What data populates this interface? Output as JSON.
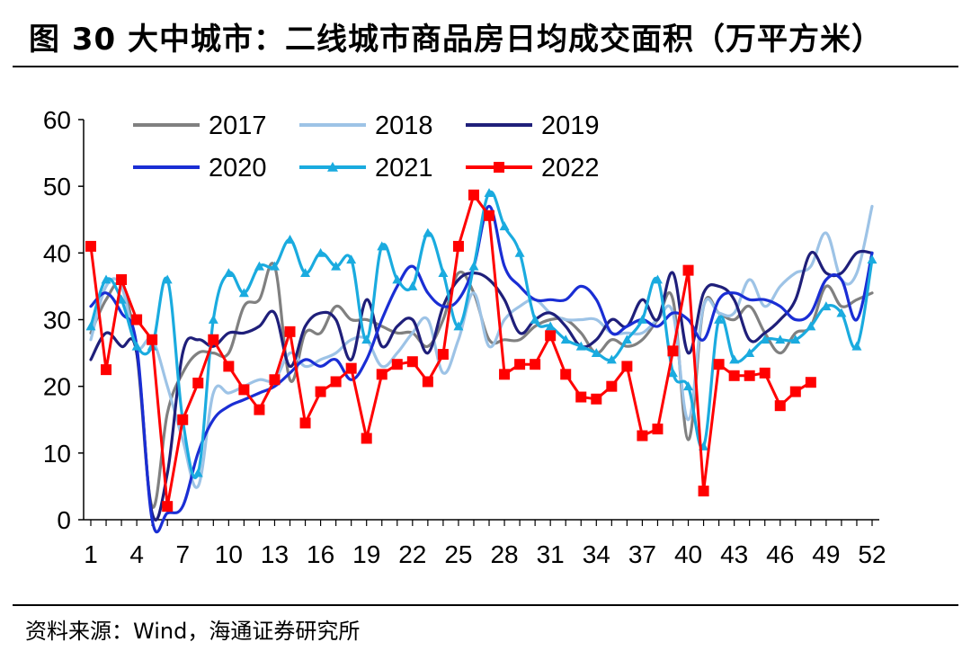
{
  "title": "图 30 大中城市：二线城市商品房日均成交面积（万平方米）",
  "source": "资料来源：Wind，海通证券研究所",
  "chart_data": {
    "type": "line",
    "title": "大中城市：二线城市商品房日均成交面积（万平方米）",
    "xlabel": "",
    "ylabel": "",
    "ylim": [
      0,
      60
    ],
    "yticks": [
      0,
      10,
      20,
      30,
      40,
      50,
      60
    ],
    "xlim": [
      1,
      52
    ],
    "xtick_labels": [
      "1",
      "4",
      "7",
      "10",
      "13",
      "16",
      "19",
      "22",
      "25",
      "28",
      "31",
      "34",
      "37",
      "40",
      "43",
      "46",
      "49",
      "52"
    ],
    "x": [
      1,
      2,
      3,
      4,
      5,
      6,
      7,
      8,
      9,
      10,
      11,
      12,
      13,
      14,
      15,
      16,
      17,
      18,
      19,
      20,
      21,
      22,
      23,
      24,
      25,
      26,
      27,
      28,
      29,
      30,
      31,
      32,
      33,
      34,
      35,
      36,
      37,
      38,
      39,
      40,
      41,
      42,
      43,
      44,
      45,
      46,
      47,
      48,
      49,
      50,
      51,
      52
    ],
    "series": [
      {
        "name": "2017",
        "color": "#808080",
        "marker": "none",
        "values": [
          28,
          33,
          35,
          25,
          2,
          16,
          22,
          25,
          25,
          25,
          32,
          33,
          38,
          21,
          28,
          28,
          32,
          30,
          30,
          29,
          28,
          28,
          26,
          30,
          37,
          34,
          27,
          27,
          27,
          29,
          30,
          30,
          28,
          25,
          27,
          26,
          27,
          30,
          33,
          12,
          32,
          31,
          30,
          32,
          28,
          25,
          28,
          29,
          35,
          32,
          33,
          34
        ]
      },
      {
        "name": "2018",
        "color": "#9DC3E6",
        "marker": "none",
        "values": [
          27,
          35,
          35,
          26,
          27,
          20,
          12,
          5,
          19,
          19,
          20,
          21,
          21,
          25,
          23,
          24,
          25,
          27,
          27,
          23,
          25,
          28,
          30,
          22,
          27,
          34,
          26,
          30,
          32,
          33,
          31,
          30,
          30,
          30,
          28,
          28,
          28,
          30,
          31,
          15,
          32,
          31,
          31,
          36,
          32,
          35,
          37,
          38,
          43,
          36,
          37,
          47
        ]
      },
      {
        "name": "2019",
        "color": "#1F1F7A",
        "marker": "none",
        "values": [
          24,
          28,
          26,
          25,
          1,
          7,
          25,
          27,
          26,
          28,
          28,
          29,
          31,
          23,
          29,
          31,
          30,
          24,
          33,
          26,
          29,
          30,
          25,
          32,
          36,
          37,
          36,
          33,
          28,
          30,
          31,
          29,
          26,
          27,
          30,
          29,
          33,
          30,
          37,
          25,
          34,
          35,
          33,
          27,
          28,
          30,
          33,
          40,
          37,
          37,
          40,
          40
        ]
      },
      {
        "name": "2020",
        "color": "#1A2ED4",
        "marker": "none",
        "values": [
          32,
          34,
          31,
          26,
          0,
          1,
          2,
          10,
          15,
          17,
          18,
          19,
          20,
          22,
          24,
          23,
          24,
          21,
          24,
          30,
          35,
          38,
          34,
          32,
          33,
          38,
          47,
          38,
          35,
          33,
          33,
          33,
          35,
          33,
          28,
          29,
          30,
          29,
          31,
          30,
          27,
          33,
          34,
          33,
          33,
          32,
          30,
          31,
          36,
          36,
          30,
          40
        ]
      },
      {
        "name": "2021",
        "color": "#1AABDF",
        "marker": "triangle",
        "values": [
          29,
          36,
          33,
          26,
          26,
          36,
          15,
          7,
          30,
          37,
          34,
          38,
          38,
          42,
          37,
          40,
          38,
          39,
          27,
          41,
          36,
          35,
          43,
          37,
          29,
          38,
          49,
          44,
          40,
          30,
          29,
          27,
          26,
          25,
          24,
          27,
          30,
          36,
          22,
          20,
          11,
          30,
          24,
          25,
          27,
          27,
          27,
          29,
          32,
          31,
          26,
          39
        ]
      },
      {
        "name": "2022",
        "color": "#FF0000",
        "marker": "square",
        "values": [
          41,
          22.5,
          36,
          30,
          27,
          2,
          15,
          20.5,
          27,
          23,
          19.5,
          16.5,
          21,
          28.2,
          14.5,
          19.2,
          20.7,
          22.7,
          12.2,
          21.8,
          23.3,
          23.7,
          20.7,
          24.8,
          41,
          48.7,
          45.6,
          21.8,
          23.3,
          23.3,
          27.6,
          21.8,
          18.4,
          18.1,
          20,
          23,
          12.6,
          13.6,
          25.3,
          37.4,
          4.3,
          23.3,
          21.6,
          21.6,
          22,
          17.1,
          19.2,
          20.6,
          null,
          null,
          null,
          null
        ]
      }
    ],
    "legend": {
      "placement": "top-left",
      "columns": 3,
      "entries": [
        "2017",
        "2018",
        "2019",
        "2020",
        "2021",
        "2022"
      ]
    }
  }
}
